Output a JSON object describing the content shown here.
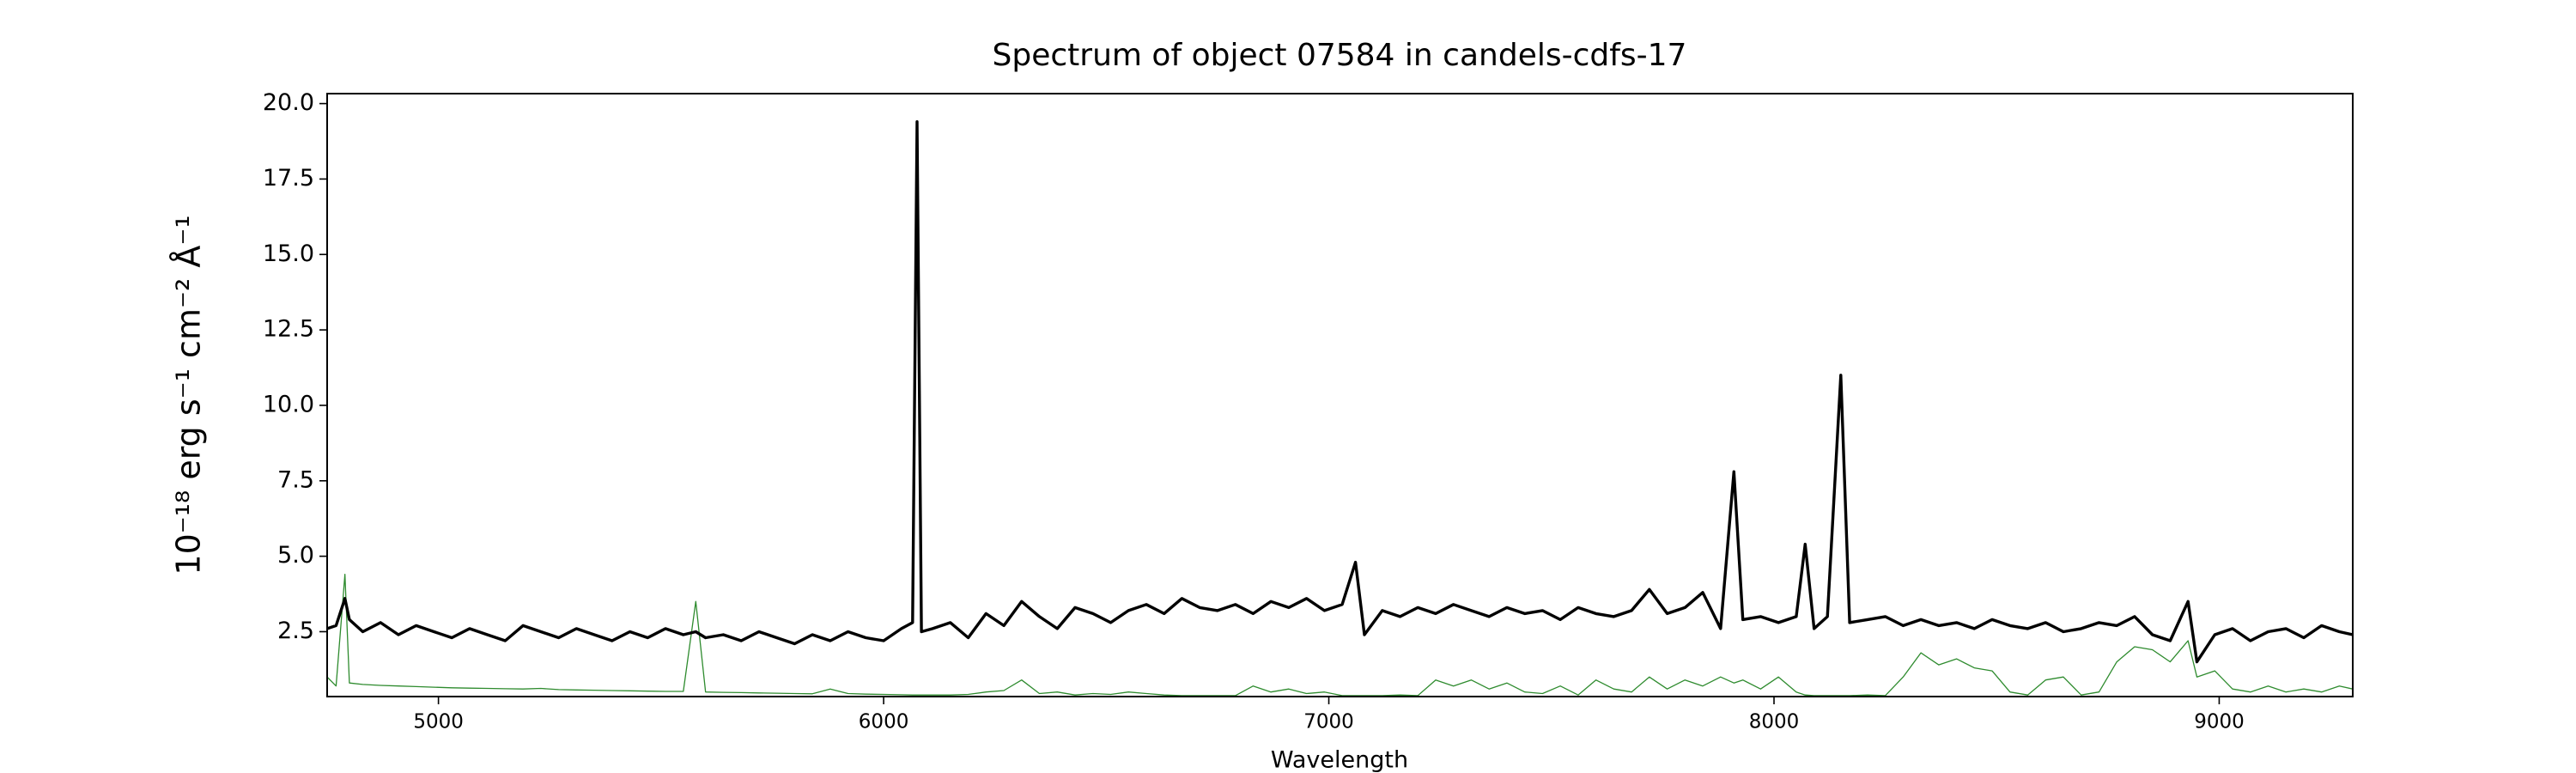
{
  "chart_data": {
    "type": "line",
    "title": "Spectrum of object 07584 in candels-cdfs-17",
    "xlabel": "Wavelength",
    "ylabel": "10⁻¹⁸ erg s⁻¹ cm⁻² Å⁻¹",
    "x": [
      4750,
      4770,
      4790,
      4800,
      4830,
      4870,
      4910,
      4950,
      4990,
      5030,
      5070,
      5110,
      5150,
      5190,
      5230,
      5270,
      5310,
      5350,
      5390,
      5430,
      5470,
      5510,
      5550,
      5578,
      5600,
      5640,
      5680,
      5720,
      5760,
      5800,
      5840,
      5880,
      5920,
      5960,
      6000,
      6040,
      6065,
      6075,
      6085,
      6110,
      6150,
      6190,
      6230,
      6270,
      6310,
      6350,
      6390,
      6430,
      6470,
      6510,
      6550,
      6590,
      6630,
      6670,
      6710,
      6750,
      6790,
      6830,
      6870,
      6910,
      6950,
      6990,
      7030,
      7060,
      7080,
      7120,
      7160,
      7200,
      7240,
      7280,
      7320,
      7360,
      7400,
      7440,
      7480,
      7520,
      7560,
      7600,
      7640,
      7680,
      7720,
      7760,
      7800,
      7840,
      7880,
      7910,
      7930,
      7970,
      8010,
      8050,
      8070,
      8090,
      8120,
      8150,
      8170,
      8210,
      8250,
      8290,
      8330,
      8370,
      8410,
      8450,
      8490,
      8530,
      8570,
      8610,
      8650,
      8690,
      8730,
      8770,
      8810,
      8850,
      8890,
      8930,
      8950,
      8990,
      9030,
      9070,
      9110,
      9150,
      9190,
      9230,
      9270,
      9300
    ],
    "series": [
      {
        "color": "#000000",
        "width": 3.4,
        "values": [
          2.6,
          2.7,
          3.6,
          2.9,
          2.5,
          2.8,
          2.4,
          2.7,
          2.5,
          2.3,
          2.6,
          2.4,
          2.2,
          2.7,
          2.5,
          2.3,
          2.6,
          2.4,
          2.2,
          2.5,
          2.3,
          2.6,
          2.4,
          2.5,
          2.3,
          2.4,
          2.2,
          2.5,
          2.3,
          2.1,
          2.4,
          2.2,
          2.5,
          2.3,
          2.2,
          2.6,
          2.8,
          19.4,
          2.5,
          2.6,
          2.8,
          2.3,
          3.1,
          2.7,
          3.5,
          3.0,
          2.6,
          3.3,
          3.1,
          2.8,
          3.2,
          3.4,
          3.1,
          3.6,
          3.3,
          3.2,
          3.4,
          3.1,
          3.5,
          3.3,
          3.6,
          3.2,
          3.4,
          4.8,
          2.4,
          3.2,
          3.0,
          3.3,
          3.1,
          3.4,
          3.2,
          3.0,
          3.3,
          3.1,
          3.2,
          2.9,
          3.3,
          3.1,
          3.0,
          3.2,
          3.9,
          3.1,
          3.3,
          3.8,
          2.6,
          7.8,
          2.9,
          3.0,
          2.8,
          3.0,
          5.4,
          2.6,
          3.0,
          11.0,
          2.8,
          2.9,
          3.0,
          2.7,
          2.9,
          2.7,
          2.8,
          2.6,
          2.9,
          2.7,
          2.6,
          2.8,
          2.5,
          2.6,
          2.8,
          2.7,
          3.0,
          2.4,
          2.2,
          3.5,
          1.5,
          2.4,
          2.6,
          2.2,
          2.5,
          2.6,
          2.3,
          2.7,
          2.5,
          2.4
        ]
      },
      {
        "color": "#2e8b2e",
        "width": 1.3,
        "values": [
          1.0,
          0.7,
          4.4,
          0.8,
          0.75,
          0.72,
          0.7,
          0.68,
          0.66,
          0.64,
          0.63,
          0.62,
          0.61,
          0.6,
          0.62,
          0.58,
          0.57,
          0.56,
          0.55,
          0.54,
          0.53,
          0.52,
          0.52,
          3.5,
          0.5,
          0.49,
          0.48,
          0.47,
          0.46,
          0.45,
          0.44,
          0.6,
          0.45,
          0.43,
          0.42,
          0.41,
          0.4,
          0.4,
          0.4,
          0.4,
          0.4,
          0.42,
          0.5,
          0.55,
          0.9,
          0.45,
          0.5,
          0.4,
          0.45,
          0.42,
          0.5,
          0.45,
          0.4,
          0.38,
          0.38,
          0.38,
          0.38,
          0.7,
          0.5,
          0.6,
          0.45,
          0.5,
          0.38,
          0.38,
          0.38,
          0.38,
          0.4,
          0.38,
          0.9,
          0.7,
          0.9,
          0.6,
          0.8,
          0.5,
          0.45,
          0.7,
          0.4,
          0.9,
          0.6,
          0.5,
          1.0,
          0.6,
          0.9,
          0.7,
          1.0,
          0.8,
          0.9,
          0.6,
          1.0,
          0.5,
          0.4,
          0.38,
          0.38,
          0.38,
          0.38,
          0.4,
          0.38,
          1.0,
          1.8,
          1.4,
          1.6,
          1.3,
          1.2,
          0.5,
          0.4,
          0.9,
          1.0,
          0.4,
          0.5,
          1.5,
          2.0,
          1.9,
          1.5,
          2.2,
          1.0,
          1.2,
          0.6,
          0.5,
          0.7,
          0.5,
          0.6,
          0.5,
          0.7,
          0.6
        ]
      }
    ],
    "xlim": [
      4750,
      9300
    ],
    "ylim": [
      0.35,
      20.33
    ],
    "xticks": [
      5000,
      6000,
      7000,
      8000,
      9000
    ],
    "yticks": [
      2.5,
      {
        "value": 5,
        "label": "5.0"
      },
      7.5,
      {
        "value": 10,
        "label": "10.0"
      },
      12.5,
      {
        "value": 15,
        "label": "15.0"
      },
      17.5,
      {
        "value": 20,
        "label": "20.0"
      }
    ],
    "grid": false
  }
}
